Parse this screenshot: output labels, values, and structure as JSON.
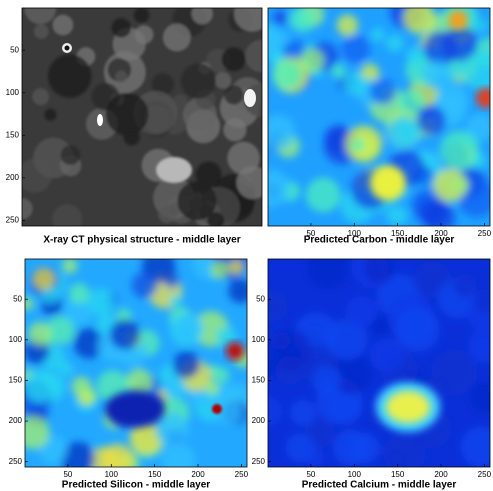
{
  "panels": [
    {
      "caption": "X-ray CT physical structure - middle layer",
      "xticks": [],
      "yticks": [
        50,
        100,
        150,
        200,
        250
      ],
      "xlim": [
        0.5,
        256.5
      ],
      "ylim": [
        0.5,
        256.5
      ]
    },
    {
      "caption": "Predicted Carbon - middle layer",
      "xticks": [
        50,
        100,
        150,
        200,
        250
      ],
      "yticks": [],
      "xlim": [
        0.5,
        256.5
      ],
      "ylim": [
        0.5,
        256.5
      ]
    },
    {
      "caption": "Predicted Silicon - middle layer",
      "xticks": [
        50,
        100,
        150,
        200,
        250
      ],
      "yticks": [
        50,
        100,
        150,
        200,
        250
      ],
      "xlim": [
        0.5,
        256.5
      ],
      "ylim": [
        0.5,
        256.5
      ]
    },
    {
      "caption": "Predicted Calcium - middle layer",
      "xticks": [
        50,
        100,
        150,
        200,
        250
      ],
      "yticks": [
        50,
        100,
        150,
        200,
        250
      ],
      "xlim": [
        0.5,
        256.5
      ],
      "ylim": [
        0.5,
        256.5
      ]
    }
  ]
}
